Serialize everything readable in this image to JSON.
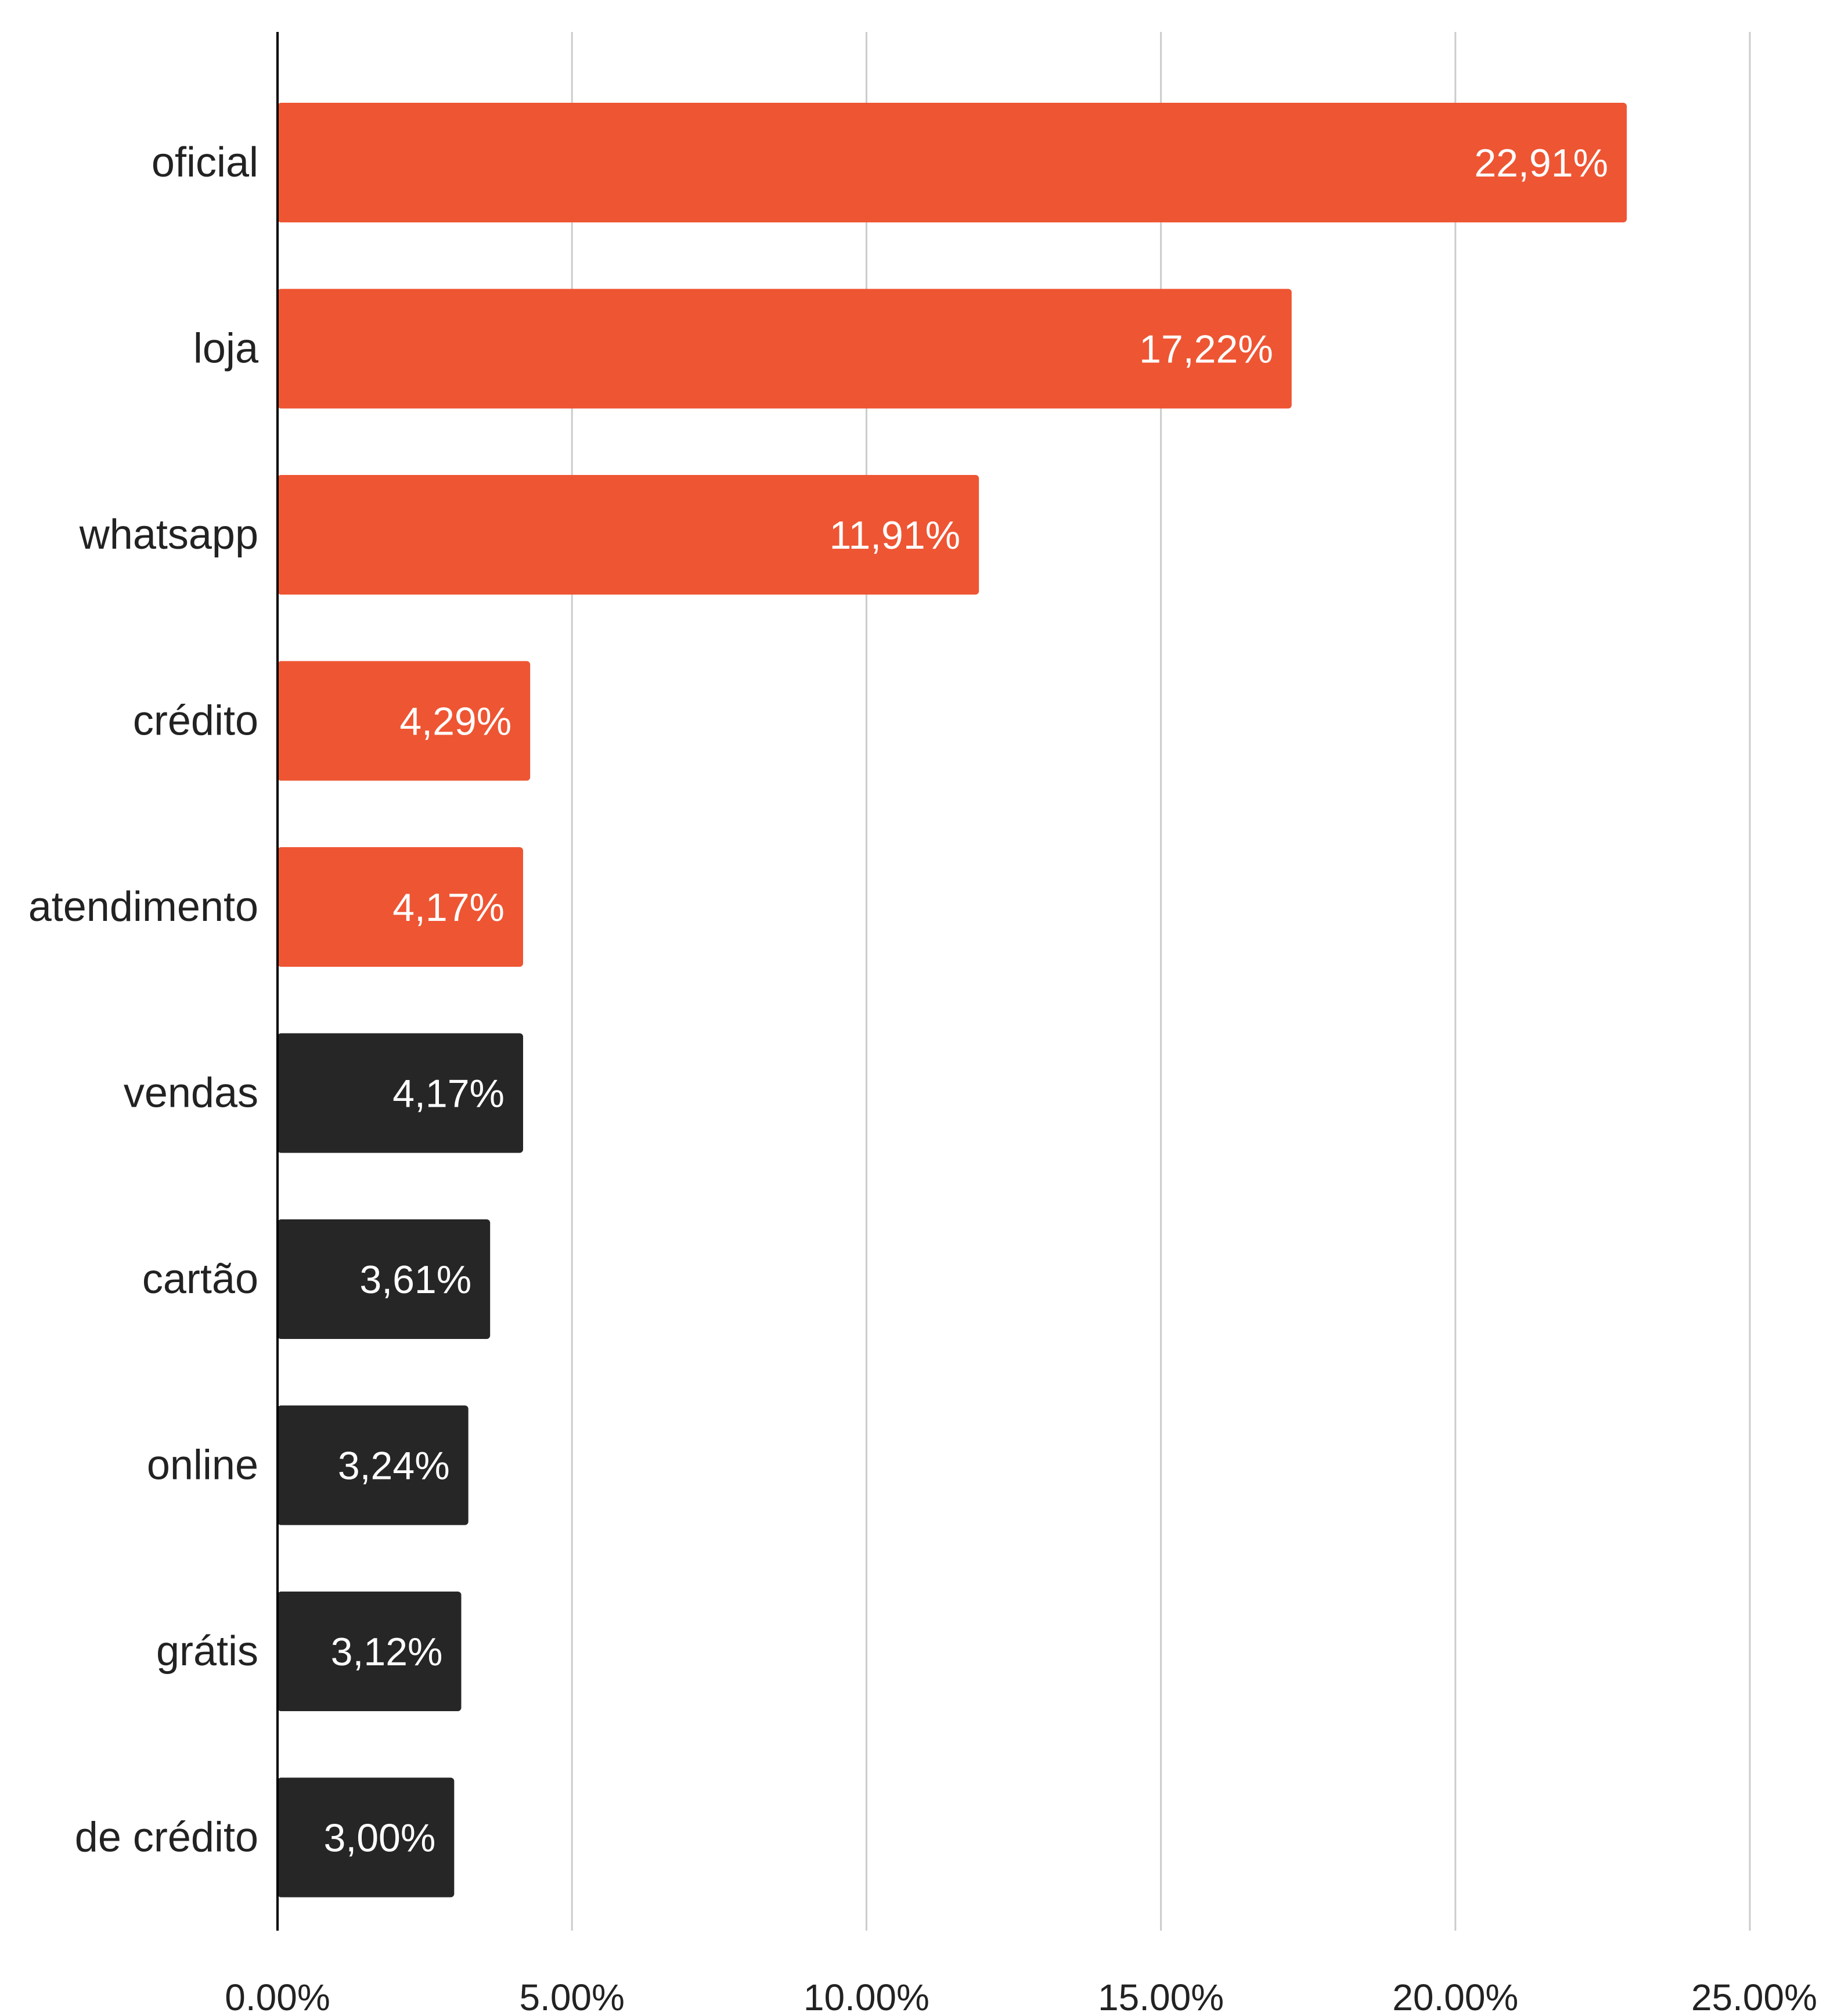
{
  "chart_data": {
    "type": "bar",
    "orientation": "horizontal",
    "title": "",
    "xlabel": "",
    "ylabel": "",
    "xlim": [
      0,
      25
    ],
    "x_ticks": [
      "0.00%",
      "5.00%",
      "10.00%",
      "15.00%",
      "20.00%",
      "25.00%"
    ],
    "grid": "vertical",
    "legend": "none",
    "categories": [
      "oficial",
      "loja",
      "whatsapp",
      "crédito",
      "atendimento",
      "vendas",
      "cartão",
      "online",
      "grátis",
      "de crédito"
    ],
    "values": [
      22.91,
      17.22,
      11.91,
      4.29,
      4.17,
      4.17,
      3.61,
      3.24,
      3.12,
      3.0
    ],
    "value_labels": [
      "22,91%",
      "17,22%",
      "11,91%",
      "4,29%",
      "4,17%",
      "4,17%",
      "3,61%",
      "3,24%",
      "3,12%",
      "3,00%"
    ],
    "bar_colors": [
      "#ee5533",
      "#ee5533",
      "#ee5533",
      "#ee5533",
      "#ee5533",
      "#262626",
      "#262626",
      "#262626",
      "#262626",
      "#262626"
    ]
  },
  "colors": {
    "highlight": "#ee5533",
    "dark": "#262626",
    "grid": "#cccccc",
    "axis": "#000000"
  }
}
